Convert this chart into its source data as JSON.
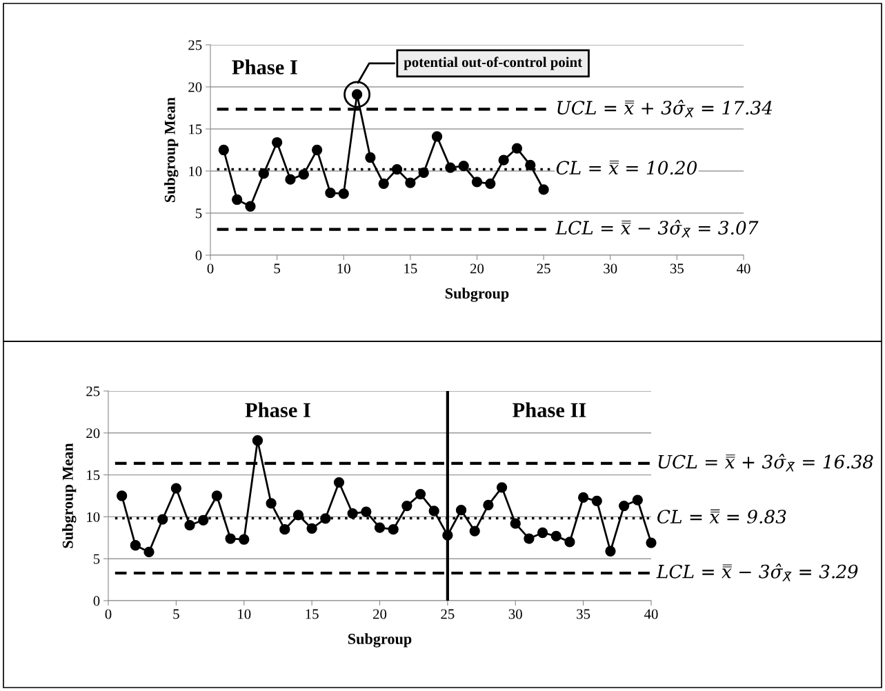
{
  "chart_data": [
    {
      "type": "line",
      "xlabel": "Subgroup",
      "ylabel": "Subgroup Mean",
      "xlim": [
        0,
        40
      ],
      "xticks": [
        0,
        5,
        10,
        15,
        20,
        25,
        30,
        35,
        40
      ],
      "ylim": [
        0,
        25
      ],
      "yticks": [
        0,
        5,
        10,
        15,
        20,
        25
      ],
      "grid": "y",
      "marker": "circle",
      "line_style": "solid",
      "series": [
        {
          "color": "#000000",
          "x": [
            1,
            2,
            3,
            4,
            5,
            6,
            7,
            8,
            9,
            10,
            11,
            12,
            13,
            14,
            15,
            16,
            17,
            18,
            19,
            20,
            21,
            22,
            23,
            24,
            25
          ],
          "values": [
            12.5,
            6.6,
            5.8,
            9.7,
            13.4,
            9.0,
            9.6,
            12.5,
            7.4,
            7.3,
            19.1,
            11.6,
            8.5,
            10.2,
            8.6,
            9.8,
            14.1,
            10.4,
            10.6,
            8.7,
            8.5,
            11.3,
            12.7,
            10.7,
            7.8
          ]
        }
      ],
      "ref_lines": [
        {
          "axis": "y",
          "value": 17.34,
          "label": "UCL = x̿ + 3σ̂$_{X̄}$ = 17.34",
          "color": "#000000",
          "line_style": "dashed"
        },
        {
          "axis": "y",
          "value": 10.2,
          "label": "CL = x̿ = 10.20",
          "color": "#000000",
          "line_style": "dotted"
        },
        {
          "axis": "y",
          "value": 3.07,
          "label": "LCL = x̿ − 3σ̂$_{X̄}$ = 3.07",
          "color": "#000000",
          "line_style": "dashed"
        }
      ],
      "annotations": [
        "Phase I",
        "potential out-of-control point"
      ]
    },
    {
      "type": "line",
      "xlabel": "Subgroup",
      "ylabel": "Subgroup Mean",
      "xlim": [
        0,
        40
      ],
      "xticks": [
        0,
        5,
        10,
        15,
        20,
        25,
        30,
        35,
        40
      ],
      "ylim": [
        0,
        25
      ],
      "yticks": [
        0,
        5,
        10,
        15,
        20,
        25
      ],
      "grid": "y",
      "marker": "circle",
      "line_style": "solid",
      "series": [
        {
          "color": "#000000",
          "x": [
            1,
            2,
            3,
            4,
            5,
            6,
            7,
            8,
            9,
            10,
            11,
            12,
            13,
            14,
            15,
            16,
            17,
            18,
            19,
            20,
            21,
            22,
            23,
            24,
            25,
            26,
            27,
            28,
            29,
            30,
            31,
            32,
            33,
            34,
            35,
            36,
            37,
            38,
            39,
            40
          ],
          "values": [
            12.5,
            6.6,
            5.8,
            9.7,
            13.4,
            9.0,
            9.6,
            12.5,
            7.4,
            7.3,
            19.1,
            11.6,
            8.5,
            10.2,
            8.6,
            9.8,
            14.1,
            10.4,
            10.6,
            8.7,
            8.5,
            11.3,
            12.7,
            10.7,
            7.8,
            10.8,
            8.3,
            11.4,
            13.5,
            9.2,
            7.4,
            8.1,
            7.7,
            7.0,
            12.3,
            11.9,
            5.9,
            11.3,
            12.0,
            6.9
          ]
        }
      ],
      "ref_lines": [
        {
          "axis": "y",
          "value": 16.38,
          "label": "UCL = x̿ + 3σ̂$_{X̄}$ = 16.38",
          "color": "#000000",
          "line_style": "dashed"
        },
        {
          "axis": "y",
          "value": 9.83,
          "label": "CL = x̿ = 9.83",
          "color": "#000000",
          "line_style": "dotted"
        },
        {
          "axis": "y",
          "value": 3.29,
          "label": "LCL = x̿ − 3σ̂$_{X̄}$ = 3.29",
          "color": "#000000",
          "line_style": "dashed"
        },
        {
          "axis": "x",
          "value": 25,
          "color": "#000000",
          "line_style": "solid"
        }
      ],
      "annotations": [
        "Phase I",
        "Phase II"
      ]
    }
  ]
}
